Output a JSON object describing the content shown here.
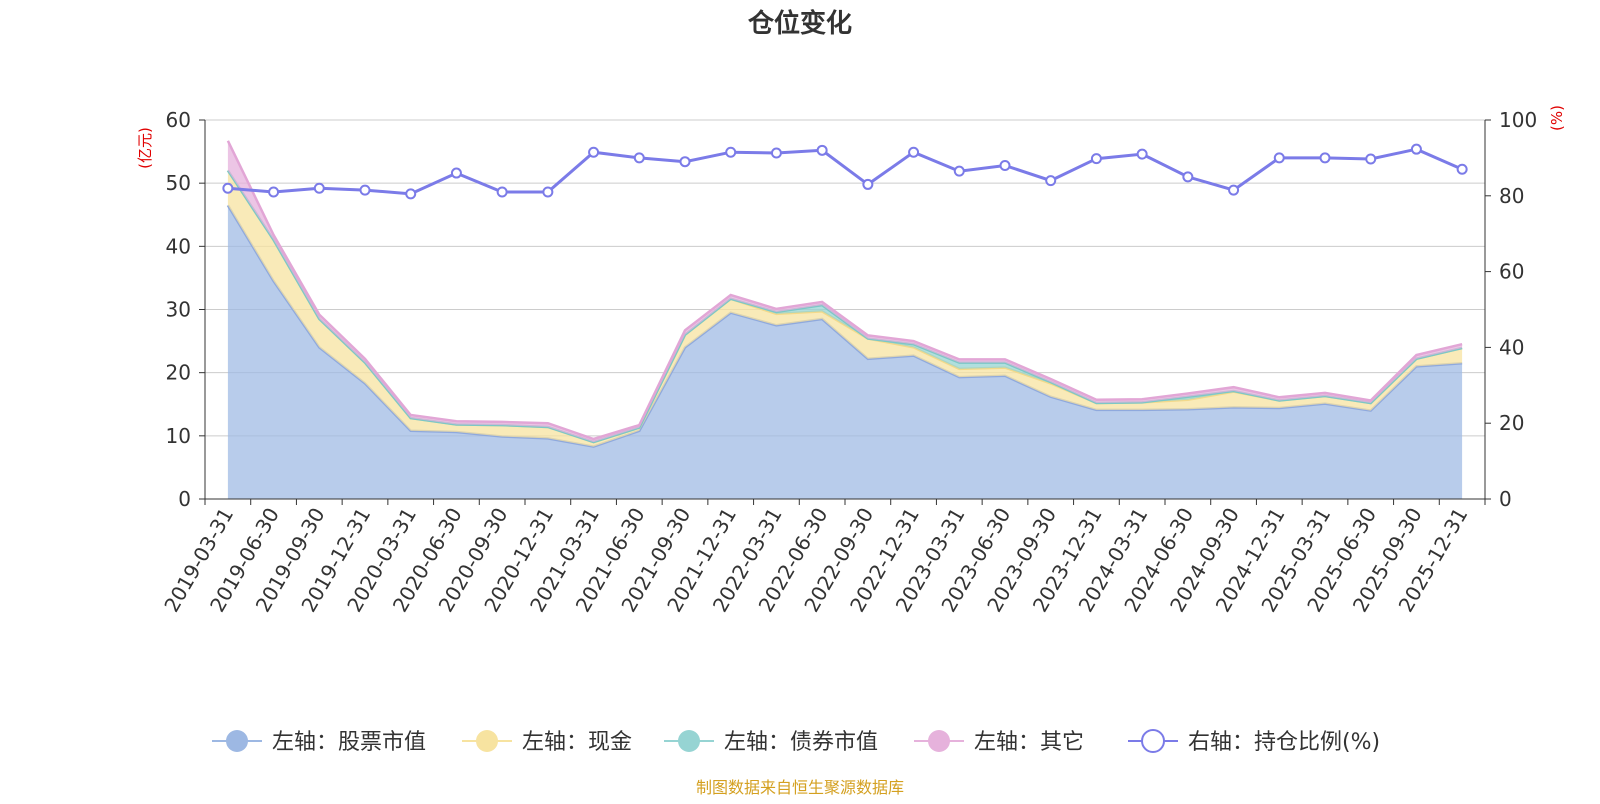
{
  "chart_data": {
    "type": "area",
    "title": "仓位变化",
    "left_axis_unit": "(亿元)",
    "right_axis_unit": "(%)",
    "left_ylim": [
      0,
      60
    ],
    "left_yticks": [
      0,
      10,
      20,
      30,
      40,
      50,
      60
    ],
    "right_ylim": [
      0,
      100
    ],
    "right_yticks": [
      0,
      20,
      40,
      60,
      80,
      100
    ],
    "grid": true,
    "legend_position": "bottom",
    "categories": [
      "2019-03-31",
      "2019-06-30",
      "2019-09-30",
      "2019-12-31",
      "2020-03-31",
      "2020-06-30",
      "2020-09-30",
      "2020-12-31",
      "2021-03-31",
      "2021-06-30",
      "2021-09-30",
      "2021-12-31",
      "2022-03-31",
      "2022-06-30",
      "2022-09-30",
      "2022-12-31",
      "2023-03-31",
      "2023-06-30",
      "2023-09-30",
      "2023-12-31",
      "2024-03-31",
      "2024-06-30",
      "2024-09-30",
      "2024-12-31",
      "2025-03-31",
      "2025-06-30",
      "2025-09-30",
      "2025-12-31"
    ],
    "series": [
      {
        "name": "左轴：股票市值",
        "axis": "left",
        "color": "#9db8e3",
        "values": [
          46.5,
          34.5,
          24.0,
          18.3,
          10.8,
          10.6,
          9.9,
          9.6,
          8.3,
          10.8,
          24.0,
          29.5,
          27.5,
          28.5,
          22.2,
          22.7,
          19.3,
          19.5,
          16.2,
          14.1,
          14.1,
          14.2,
          14.5,
          14.4,
          15.1,
          14.0,
          21.0,
          21.5
        ]
      },
      {
        "name": "左轴：现金",
        "axis": "left",
        "color": "#f7e3a0",
        "values": [
          5.5,
          6.5,
          4.5,
          3.3,
          2.0,
          1.2,
          1.8,
          1.8,
          0.7,
          0.5,
          2.0,
          2.2,
          1.8,
          1.2,
          3.2,
          1.3,
          1.3,
          1.3,
          2.1,
          1.1,
          1.2,
          1.5,
          2.5,
          1.2,
          1.2,
          1.2,
          1.2,
          2.4
        ]
      },
      {
        "name": "左轴：债券市值",
        "axis": "left",
        "color": "#96d4d3",
        "values": [
          0,
          0,
          0,
          0,
          0,
          0,
          0,
          0,
          0,
          0,
          0,
          0,
          0.3,
          1.0,
          0,
          0.5,
          1.0,
          0.8,
          0.2,
          0,
          0,
          0.5,
          0.1,
          0,
          0,
          0,
          0,
          0
        ]
      },
      {
        "name": "左轴：其它",
        "axis": "left",
        "color": "#e6b2dc",
        "values": [
          4.7,
          0.8,
          0.7,
          0.6,
          0.5,
          0.5,
          0.5,
          0.6,
          0.5,
          0.4,
          0.7,
          0.6,
          0.5,
          0.5,
          0.5,
          0.5,
          0.5,
          0.5,
          0.5,
          0.5,
          0.5,
          0.5,
          0.6,
          0.5,
          0.5,
          0.4,
          0.6,
          0.6
        ]
      },
      {
        "name": "右轴：持仓比例(%)",
        "axis": "right",
        "color": "#7b7be8",
        "values": [
          82,
          81,
          82,
          81.5,
          80.5,
          86,
          81,
          81,
          91.5,
          90,
          89,
          91.5,
          91.3,
          92,
          83,
          91.5,
          86.5,
          88,
          84,
          89.8,
          91,
          85,
          81.5,
          90,
          90,
          89.7,
          92.3,
          87
        ]
      }
    ]
  },
  "footer": {
    "source": "制图数据来自恒生聚源数据库"
  }
}
